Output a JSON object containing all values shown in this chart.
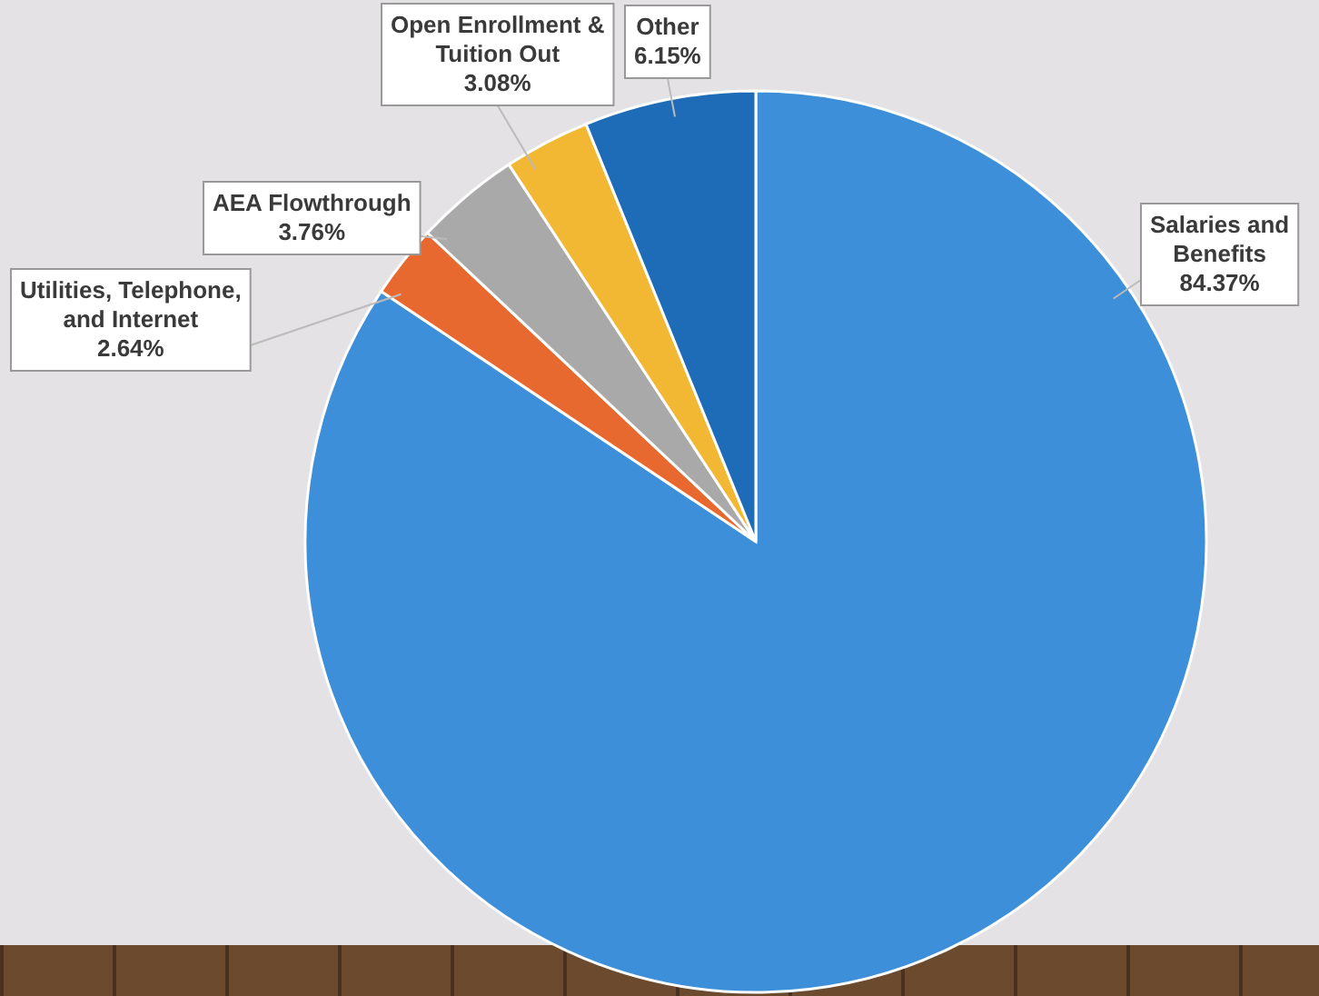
{
  "chart_data": {
    "type": "pie",
    "categories": [
      "Salaries and Benefits",
      "Utilities, Telephone, and Internet",
      "AEA Flowthrough",
      "Open Enrollment & Tuition Out",
      "Other"
    ],
    "values": [
      84.37,
      2.64,
      3.76,
      3.08,
      6.15
    ],
    "value_labels": [
      "84.37%",
      "2.64%",
      "3.76%",
      "3.08%",
      "6.15%"
    ],
    "colors": [
      "#3d8fd9",
      "#e8692f",
      "#a9a9a9",
      "#f2b733",
      "#1e6cb8"
    ]
  }
}
